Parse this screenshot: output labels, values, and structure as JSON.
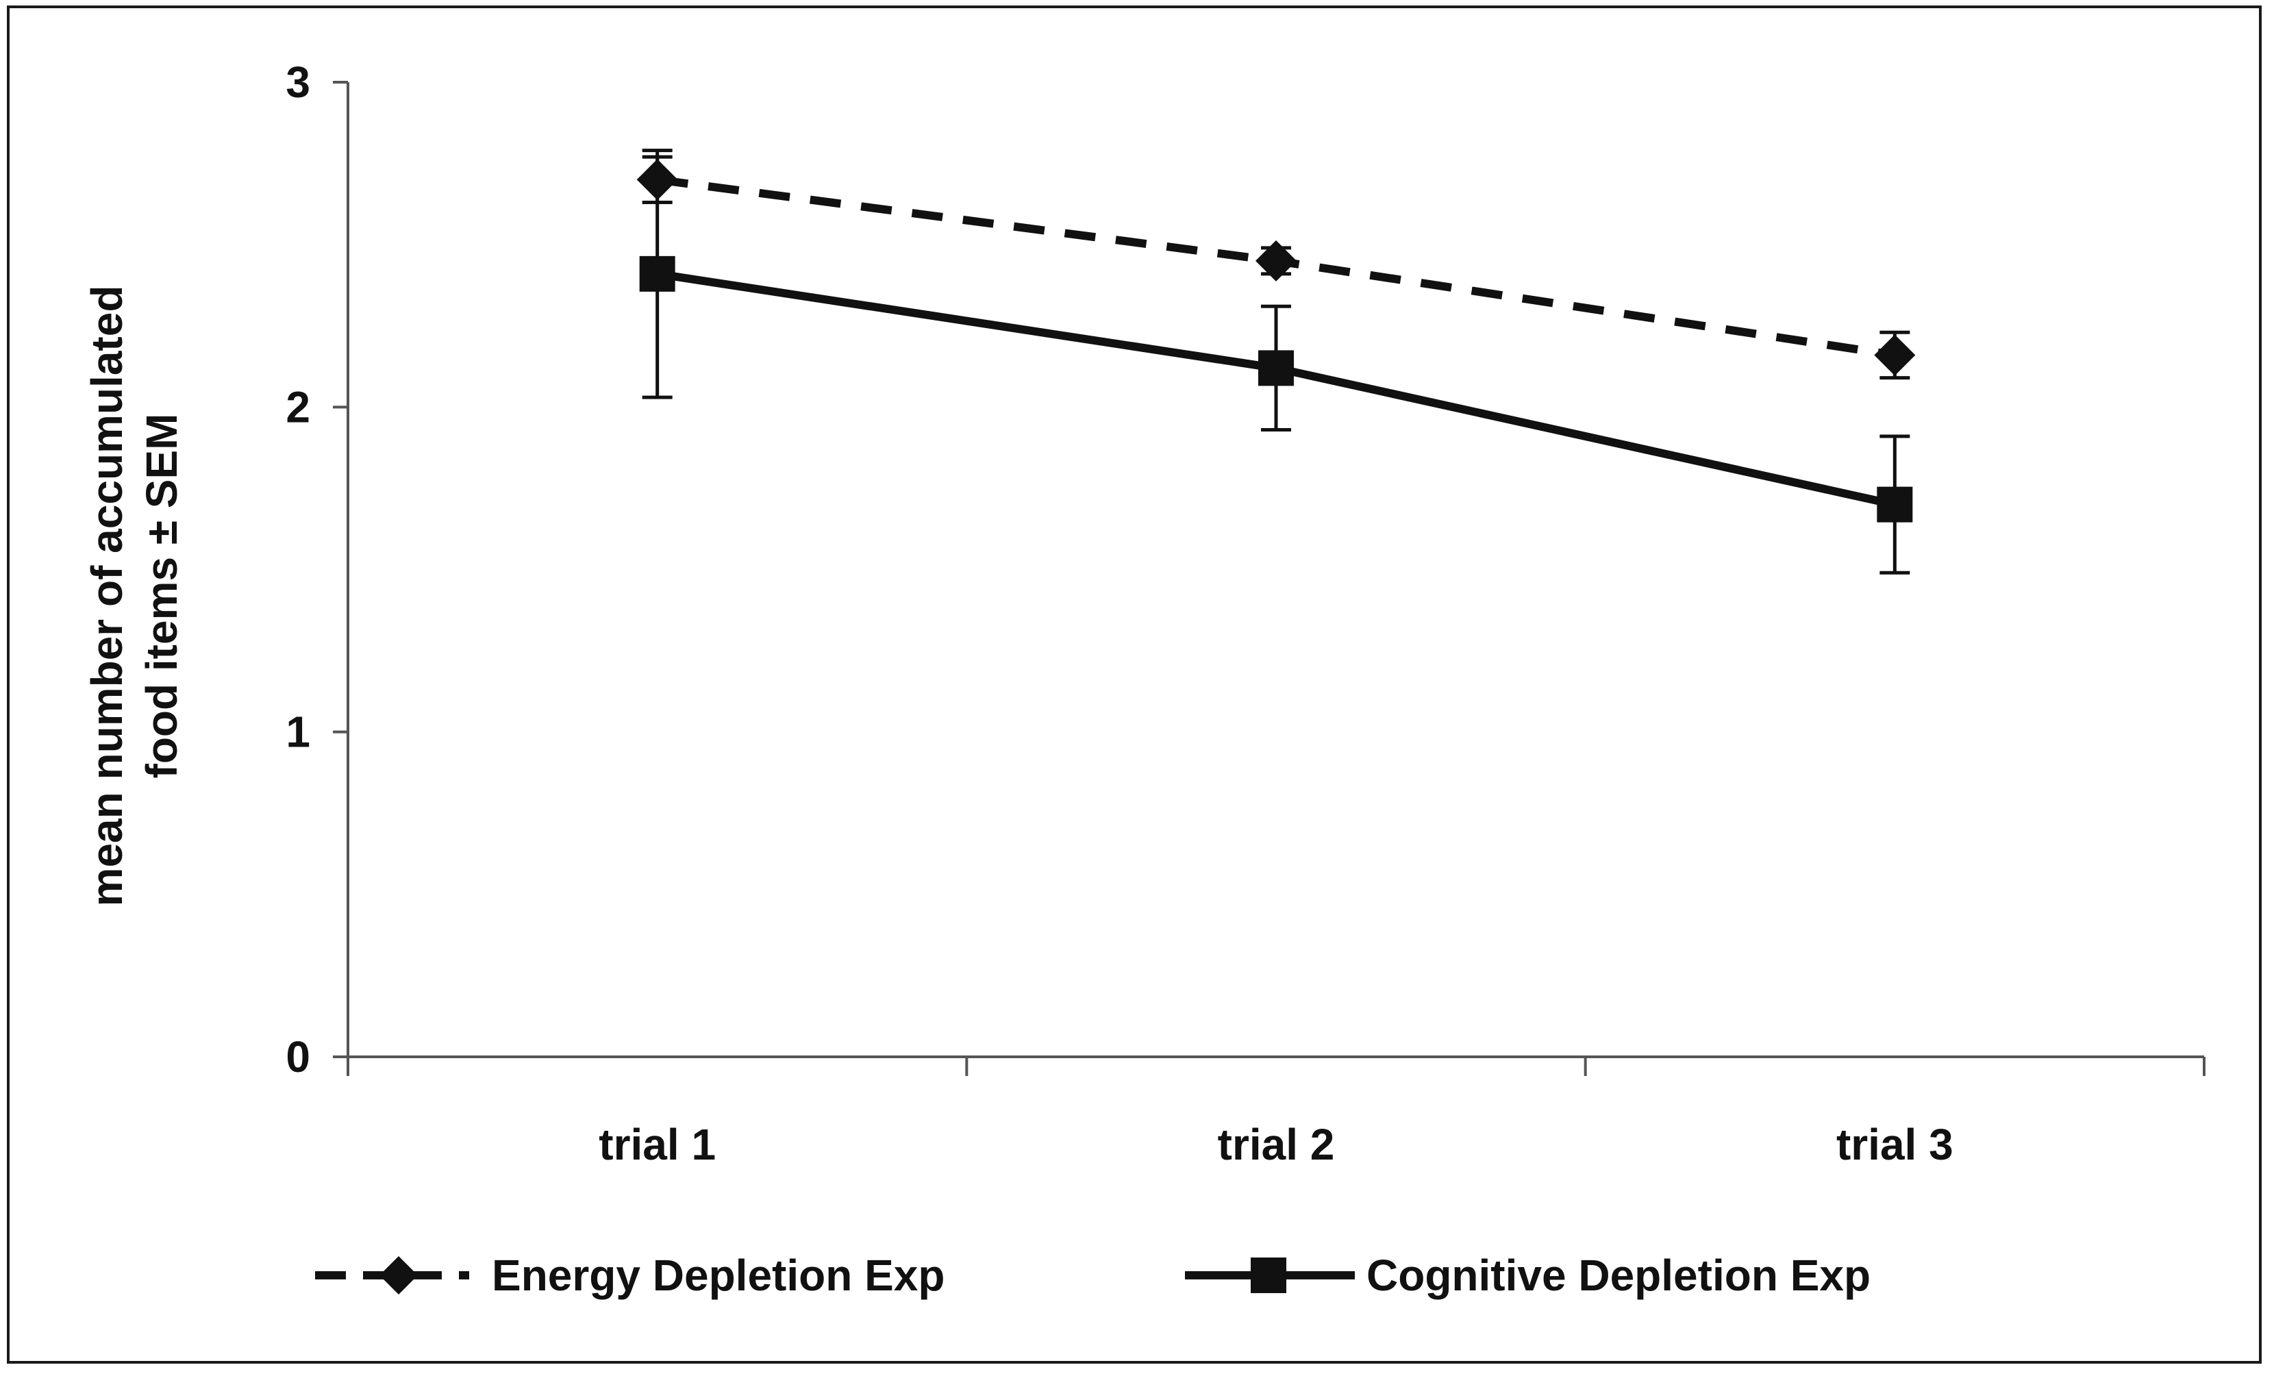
{
  "chart_data": {
    "type": "line",
    "title": "",
    "xlabel": "",
    "ylabel_lines": [
      "mean number of accumulated",
      "food items ± SEM"
    ],
    "categories": [
      "trial 1",
      "trial 2",
      "trial 3"
    ],
    "ylim": [
      0,
      3
    ],
    "yticks": [
      "0",
      "1",
      "2",
      "3"
    ],
    "grid": false,
    "legend_position": "bottom",
    "series": [
      {
        "name": "Energy Depletion Exp",
        "marker": "diamond",
        "line_style": "dashed",
        "values": [
          2.7,
          2.45,
          2.16
        ],
        "errors": [
          0.07,
          0.04,
          0.07
        ]
      },
      {
        "name": "Cognitive Depletion Exp",
        "marker": "square",
        "line_style": "solid",
        "values": [
          2.41,
          2.12,
          1.7
        ],
        "errors": [
          0.38,
          0.19,
          0.21
        ]
      }
    ]
  },
  "colors": {
    "line": "#111111",
    "axis": "#555555",
    "background": "#ffffff"
  }
}
